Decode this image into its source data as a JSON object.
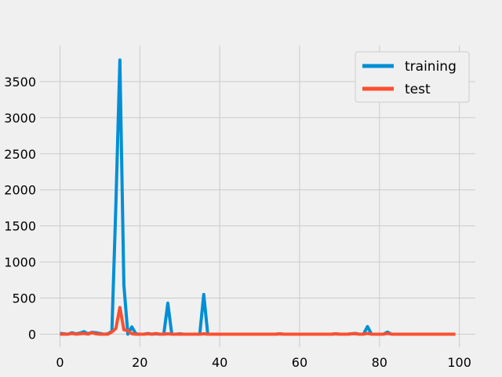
{
  "chart_data": {
    "type": "line",
    "title": "",
    "xlabel": "",
    "ylabel": "",
    "xlim": [
      -5,
      104
    ],
    "ylim": [
      -180,
      4000
    ],
    "x_ticks": [
      0,
      20,
      40,
      60,
      80,
      100
    ],
    "y_ticks": [
      0,
      500,
      1000,
      1500,
      2000,
      2500,
      3000,
      3500
    ],
    "x_tick_labels": [
      "0",
      "20",
      "40",
      "60",
      "80",
      "100"
    ],
    "y_tick_labels": [
      "0",
      "500",
      "1000",
      "1500",
      "2000",
      "2500",
      "3000",
      "3500"
    ],
    "grid": true,
    "legend_position": "top-right",
    "series": [
      {
        "name": "training",
        "color": "#008fd5",
        "x": [
          0,
          1,
          2,
          3,
          4,
          5,
          6,
          7,
          8,
          9,
          10,
          11,
          12,
          13,
          14,
          15,
          16,
          17,
          18,
          19,
          20,
          21,
          22,
          23,
          24,
          25,
          26,
          27,
          28,
          29,
          30,
          31,
          32,
          33,
          34,
          35,
          36,
          37,
          38,
          39,
          40,
          41,
          42,
          43,
          44,
          45,
          46,
          47,
          48,
          49,
          50,
          51,
          52,
          53,
          54,
          55,
          56,
          57,
          58,
          59,
          60,
          61,
          62,
          63,
          64,
          65,
          66,
          67,
          68,
          69,
          70,
          71,
          72,
          73,
          74,
          75,
          76,
          77,
          78,
          79,
          80,
          81,
          82,
          83,
          84,
          85,
          86,
          87,
          88,
          89,
          90,
          91,
          92,
          93,
          94,
          95,
          96,
          97,
          98,
          99
        ],
        "values": [
          10,
          5,
          0,
          20,
          5,
          15,
          35,
          5,
          25,
          20,
          10,
          0,
          5,
          40,
          1800,
          3800,
          680,
          0,
          100,
          5,
          0,
          0,
          10,
          0,
          5,
          0,
          0,
          430,
          0,
          0,
          5,
          0,
          0,
          0,
          0,
          0,
          550,
          0,
          0,
          0,
          0,
          0,
          0,
          0,
          0,
          0,
          0,
          0,
          0,
          0,
          0,
          0,
          0,
          0,
          0,
          5,
          0,
          0,
          0,
          0,
          0,
          0,
          0,
          0,
          0,
          0,
          0,
          0,
          0,
          5,
          0,
          0,
          0,
          5,
          10,
          0,
          0,
          105,
          0,
          0,
          0,
          0,
          30,
          0,
          0,
          0,
          0,
          0,
          0,
          0,
          0,
          0,
          0,
          0,
          0,
          0,
          0,
          0,
          0,
          0
        ]
      },
      {
        "name": "test",
        "color": "#fc4f30",
        "x": [
          0,
          1,
          2,
          3,
          4,
          5,
          6,
          7,
          8,
          9,
          10,
          11,
          12,
          13,
          14,
          15,
          16,
          17,
          18,
          19,
          20,
          21,
          22,
          23,
          24,
          25,
          26,
          27,
          28,
          29,
          30,
          31,
          32,
          33,
          34,
          35,
          36,
          37,
          38,
          39,
          40,
          41,
          42,
          43,
          44,
          45,
          46,
          47,
          48,
          49,
          50,
          51,
          52,
          53,
          54,
          55,
          56,
          57,
          58,
          59,
          60,
          61,
          62,
          63,
          64,
          65,
          66,
          67,
          68,
          69,
          70,
          71,
          72,
          73,
          74,
          75,
          76,
          77,
          78,
          79,
          80,
          81,
          82,
          83,
          84,
          85,
          86,
          87,
          88,
          89,
          90,
          91,
          92,
          93,
          94,
          95,
          96,
          97,
          98,
          99
        ],
        "values": [
          0,
          0,
          0,
          10,
          0,
          5,
          10,
          0,
          20,
          5,
          0,
          0,
          0,
          30,
          80,
          370,
          60,
          50,
          5,
          0,
          0,
          0,
          5,
          0,
          10,
          0,
          0,
          5,
          0,
          0,
          0,
          0,
          0,
          0,
          0,
          0,
          5,
          0,
          0,
          0,
          0,
          0,
          0,
          0,
          0,
          0,
          0,
          0,
          0,
          0,
          0,
          0,
          0,
          0,
          0,
          5,
          0,
          0,
          0,
          0,
          0,
          0,
          0,
          0,
          0,
          0,
          0,
          0,
          0,
          5,
          0,
          0,
          0,
          5,
          5,
          0,
          0,
          10,
          0,
          0,
          0,
          0,
          10,
          0,
          0,
          0,
          0,
          0,
          0,
          0,
          0,
          0,
          0,
          0,
          0,
          0,
          0,
          0,
          0,
          0
        ]
      }
    ]
  }
}
